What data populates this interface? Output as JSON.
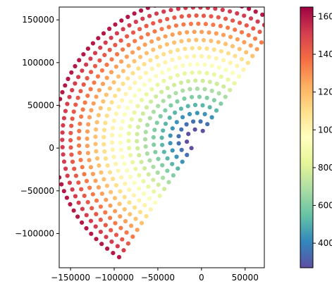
{
  "chart_data": {
    "type": "scatter",
    "title": "",
    "xlabel": "",
    "ylabel": "",
    "xlim": [
      -163000,
      72000
    ],
    "ylim": [
      -140000,
      165000
    ],
    "xticks": [
      -150000,
      -100000,
      -50000,
      0,
      50000
    ],
    "xtick_labels": [
      "−150000",
      "−100000",
      "−50000",
      "0",
      "50000"
    ],
    "yticks": [
      -100000,
      -50000,
      0,
      50000,
      100000,
      150000
    ],
    "ytick_labels": [
      "−100000",
      "−50000",
      "0",
      "50000",
      "100000",
      "150000"
    ],
    "grid": false,
    "legend": "none",
    "colormap": "Spectral_r",
    "colorbar": {
      "range": [
        270,
        1650
      ],
      "ticks": [
        400,
        600,
        800,
        1000,
        1200,
        1400,
        1600
      ],
      "tick_labels": [
        "400",
        "600",
        "800",
        "1000",
        "1200",
        "1400",
        "1600"
      ],
      "placement": "right"
    },
    "marker_color": "#2a7ab8",
    "scatter_field": {
      "shape": "half-disc wedge",
      "apex": [
        -5000,
        10000
      ],
      "radius_range": [
        12000,
        170000
      ],
      "angle_range_deg": [
        57,
        237
      ],
      "value_at_inner_radius": 270,
      "value_at_outer_radius": 1650,
      "ring_spacing": 9500,
      "point_spacing": 8500
    }
  }
}
